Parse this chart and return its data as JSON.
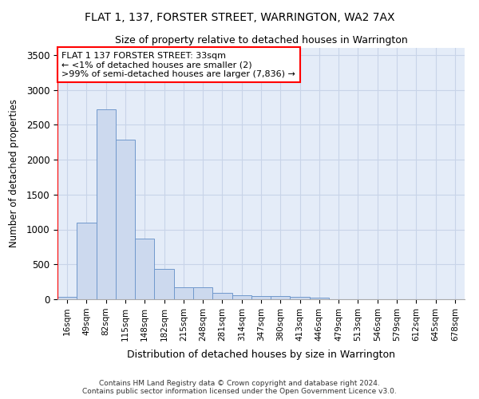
{
  "title": "FLAT 1, 137, FORSTER STREET, WARRINGTON, WA2 7AX",
  "subtitle": "Size of property relative to detached houses in Warrington",
  "xlabel": "Distribution of detached houses by size in Warrington",
  "ylabel": "Number of detached properties",
  "bar_color": "#ccd9ee",
  "bar_edge_color": "#7098cc",
  "grid_color": "#c8d4e8",
  "background_color": "#e4ecf8",
  "categories": [
    "16sqm",
    "49sqm",
    "82sqm",
    "115sqm",
    "148sqm",
    "182sqm",
    "215sqm",
    "248sqm",
    "281sqm",
    "314sqm",
    "347sqm",
    "380sqm",
    "413sqm",
    "446sqm",
    "479sqm",
    "513sqm",
    "546sqm",
    "579sqm",
    "612sqm",
    "645sqm",
    "678sqm"
  ],
  "values": [
    40,
    1100,
    2720,
    2290,
    870,
    430,
    170,
    170,
    90,
    60,
    50,
    50,
    30,
    25,
    5,
    0,
    0,
    0,
    0,
    0,
    0
  ],
  "ylim": [
    0,
    3600
  ],
  "yticks": [
    0,
    500,
    1000,
    1500,
    2000,
    2500,
    3000,
    3500
  ],
  "annotation_title": "FLAT 1 137 FORSTER STREET: 33sqm",
  "annotation_line1": "← <1% of detached houses are smaller (2)",
  "annotation_line2": ">99% of semi-detached houses are larger (7,836) →",
  "footer_line1": "Contains HM Land Registry data © Crown copyright and database right 2024.",
  "footer_line2": "Contains public sector information licensed under the Open Government Licence v3.0."
}
